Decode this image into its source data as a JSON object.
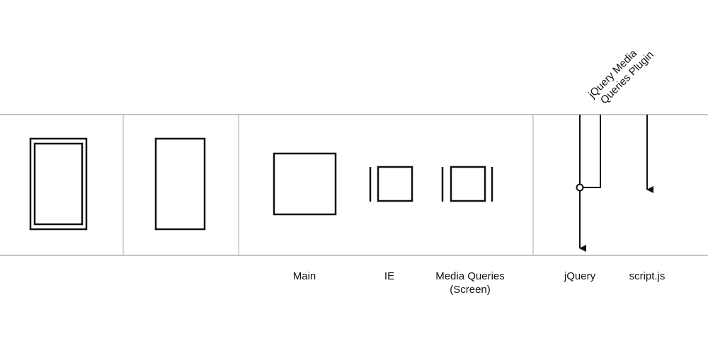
{
  "diagram": {
    "labels": {
      "main": "Main",
      "ie": "IE",
      "media_queries_line1": "Media Queries",
      "media_queries_line2": "(Screen)",
      "jquery": "jQuery",
      "script_js": "script.js",
      "plugin_line1": "jQuery Media",
      "plugin_line2": "Queries Plugin"
    },
    "colors": {
      "band_line": "#888888",
      "stroke": "#111111",
      "background": "#ffffff"
    }
  }
}
